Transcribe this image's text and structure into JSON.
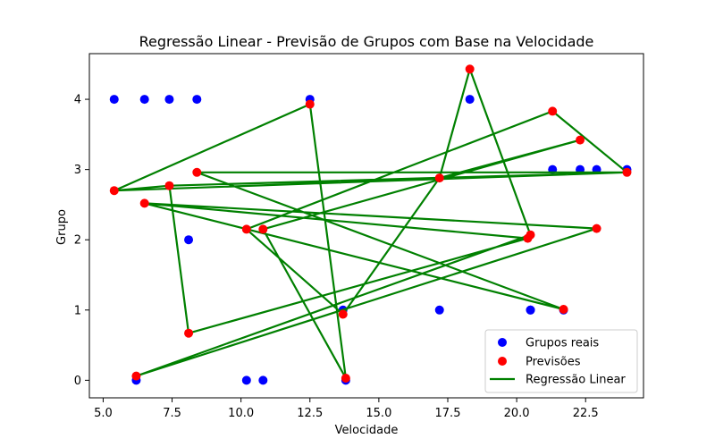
{
  "chart_data": {
    "type": "scatter",
    "title": "Regressão Linear - Previsão de Grupos com Base na Velocidade",
    "xlabel": "Velocidade",
    "ylabel": "Grupo",
    "xlim": [
      4.5,
      24.6
    ],
    "ylim": [
      -0.25,
      4.65
    ],
    "xticks": [
      5.0,
      7.5,
      10.0,
      12.5,
      15.0,
      17.5,
      20.0,
      22.5
    ],
    "xtick_labels": [
      "5.0",
      "7.5",
      "10.0",
      "12.5",
      "15.0",
      "17.5",
      "20.0",
      "22.5"
    ],
    "yticks": [
      0,
      1,
      2,
      3,
      4
    ],
    "ytick_labels": [
      "0",
      "1",
      "2",
      "3",
      "4"
    ],
    "grid": false,
    "legend_position": "lower-right",
    "series": [
      {
        "name": "Grupos reais",
        "kind": "scatter",
        "color": "#0000ff",
        "x": [
          5.4,
          6.5,
          7.4,
          8.4,
          12.5,
          18.3,
          6.2,
          10.2,
          10.8,
          13.8,
          8.1,
          13.7,
          17.2,
          20.5,
          20.5,
          21.7,
          21.3,
          22.3,
          22.9,
          24.0
        ],
        "y": [
          4,
          4,
          4,
          4,
          4,
          4,
          0,
          0,
          0,
          0,
          2,
          1,
          1,
          1,
          1,
          1,
          3,
          3,
          3,
          3
        ]
      },
      {
        "name": "Previsões",
        "kind": "scatter",
        "color": "#ff0000",
        "x": [
          5.4,
          6.5,
          7.4,
          8.4,
          12.5,
          18.3,
          6.2,
          10.2,
          10.8,
          13.8,
          8.1,
          13.7,
          17.2,
          20.5,
          20.4,
          21.7,
          21.3,
          22.3,
          22.9,
          24.0
        ],
        "y": [
          2.7,
          2.52,
          2.77,
          2.96,
          3.93,
          4.43,
          0.06,
          2.15,
          2.15,
          0.03,
          0.67,
          0.94,
          2.88,
          2.07,
          2.02,
          1.01,
          3.83,
          3.42,
          2.16,
          2.96
        ]
      },
      {
        "name": "Regressão Linear",
        "kind": "line",
        "color": "#008000",
        "x": [
          5.4,
          12.5,
          13.8,
          10.8,
          22.3,
          17.2,
          18.3,
          20.5,
          6.2,
          22.9,
          6.5,
          21.7,
          8.4,
          24.0,
          21.3,
          10.2,
          13.7,
          17.2,
          7.4,
          24.0,
          5.4,
          7.4,
          8.1,
          20.4,
          6.5
        ],
        "y": [
          2.7,
          3.93,
          0.03,
          2.15,
          3.42,
          2.88,
          4.43,
          2.07,
          0.06,
          2.16,
          2.52,
          1.01,
          2.96,
          2.96,
          3.83,
          2.15,
          0.94,
          2.88,
          2.77,
          2.96,
          2.7,
          2.77,
          0.67,
          2.02,
          2.52
        ]
      }
    ]
  }
}
